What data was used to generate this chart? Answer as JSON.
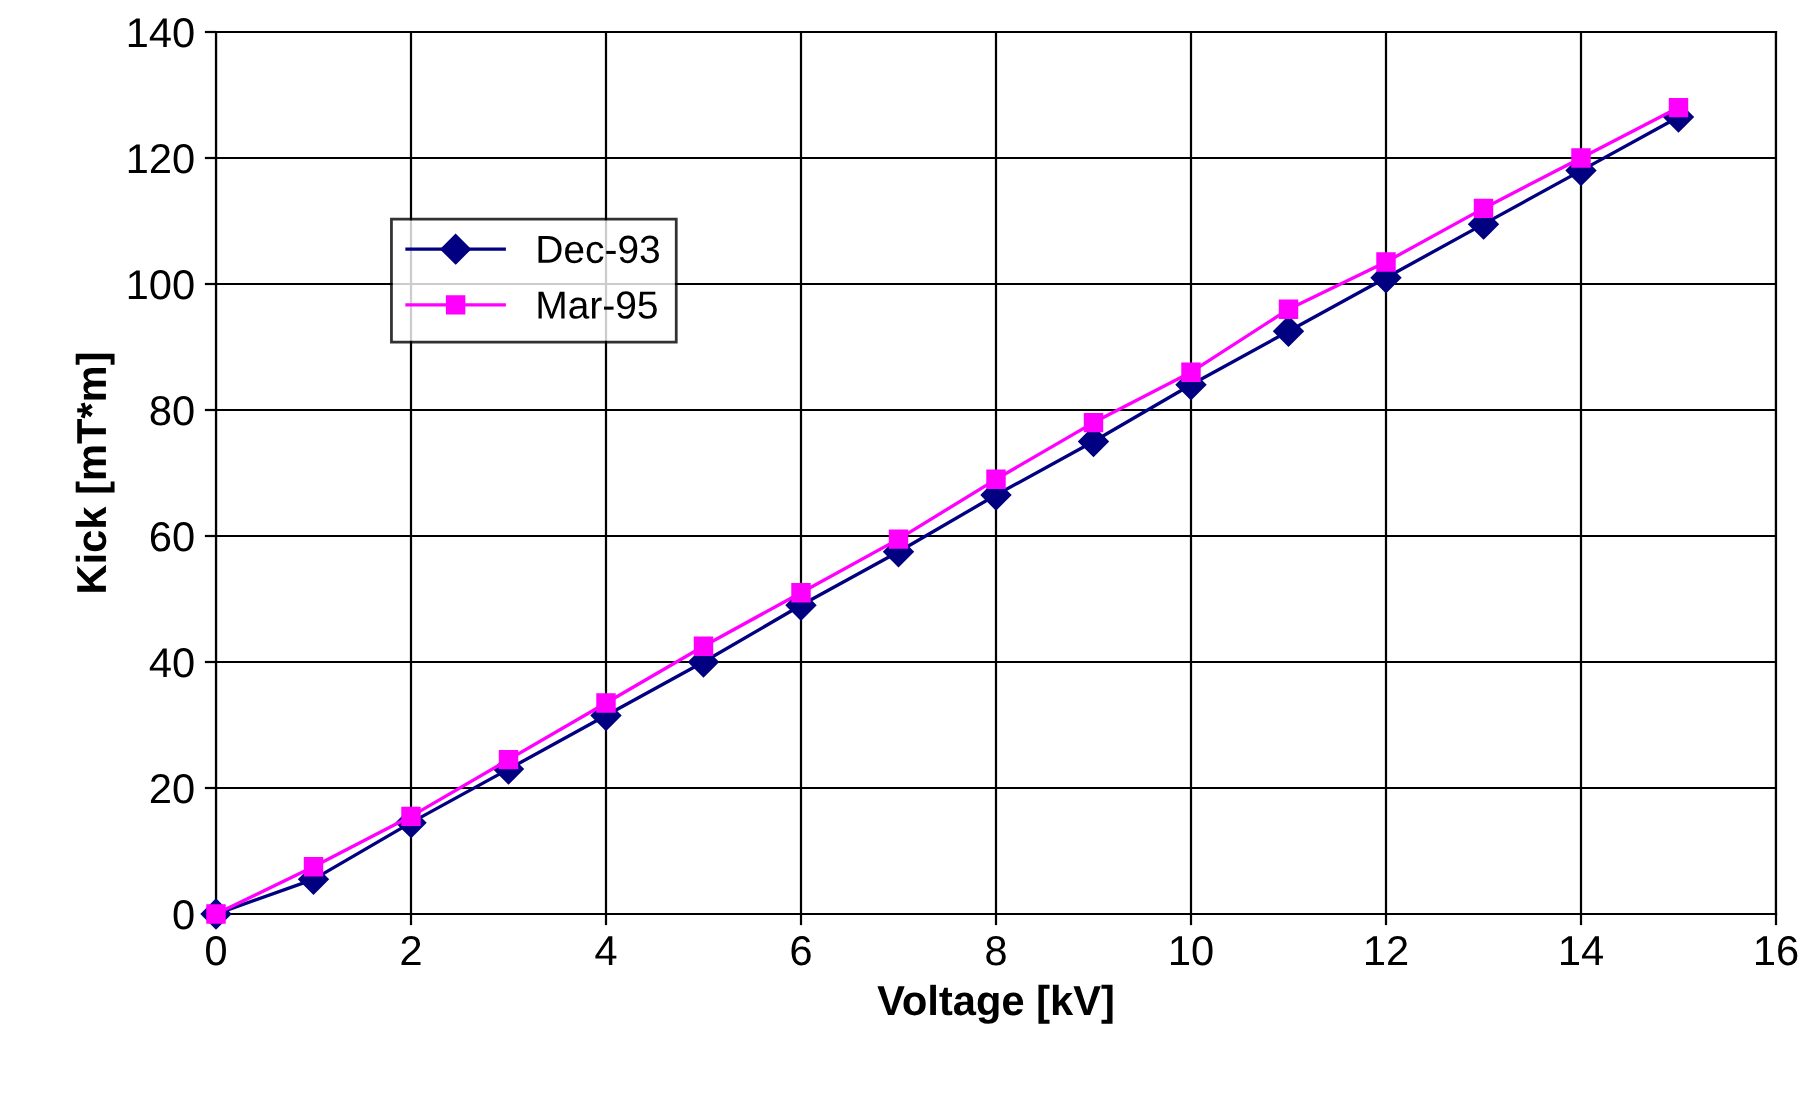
{
  "chart_data": {
    "type": "line",
    "xlabel": "Voltage [kV]",
    "ylabel": "Kick [mT*m]",
    "x": [
      0,
      1,
      2,
      3,
      4,
      5,
      6,
      7,
      8,
      9,
      10,
      11,
      12,
      13,
      14,
      15
    ],
    "series": [
      {
        "name": "Dec-93",
        "color": "#000080",
        "marker": "diamond",
        "values": [
          0,
          5.5,
          14.5,
          23,
          31.5,
          40,
          49,
          57.5,
          66.5,
          75,
          84,
          92.5,
          101,
          109.5,
          118,
          126.5
        ]
      },
      {
        "name": "Mar-95",
        "color": "#ff00ff",
        "marker": "square",
        "values": [
          0,
          7.5,
          15.5,
          24.5,
          33.5,
          42.5,
          51,
          59.5,
          69,
          78,
          86,
          96,
          103.5,
          112,
          120,
          128
        ]
      }
    ],
    "xlim": [
      0,
      16
    ],
    "xticks": [
      0,
      2,
      4,
      6,
      8,
      10,
      12,
      14,
      16
    ],
    "ylim": [
      0,
      140
    ],
    "yticks": [
      0,
      20,
      40,
      60,
      80,
      100,
      120,
      140
    ],
    "grid": true,
    "legend": "top left",
    "line_style": "solid"
  }
}
